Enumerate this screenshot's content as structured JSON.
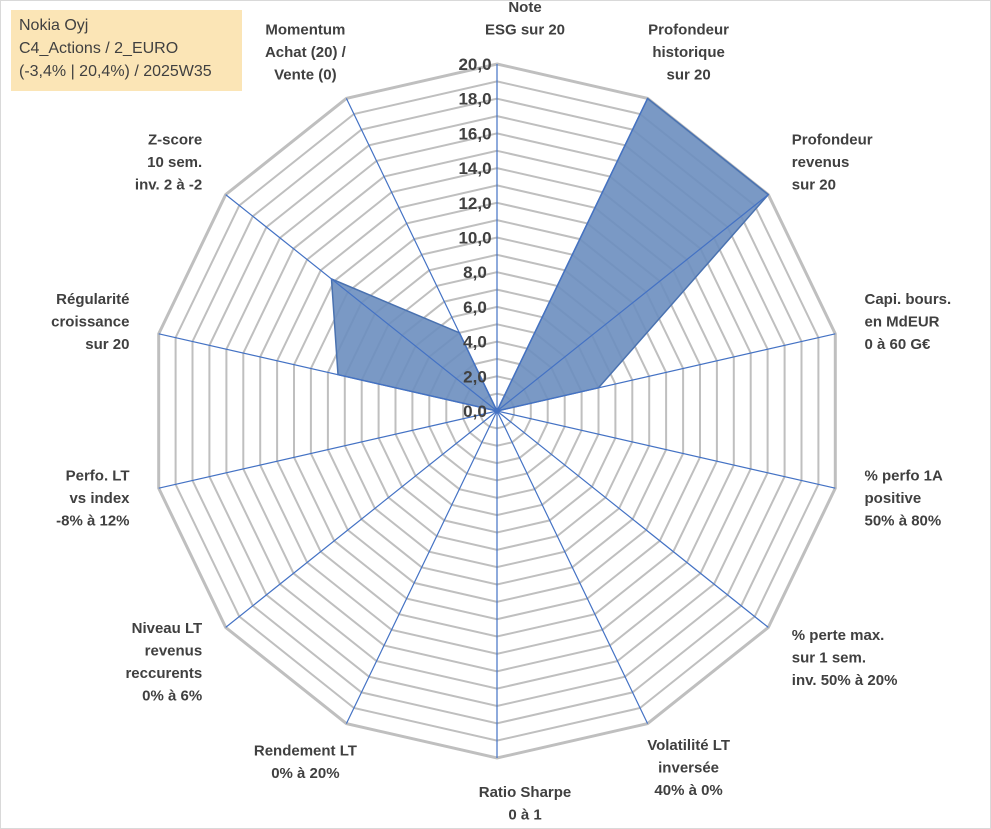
{
  "info_box": {
    "line1": "Nokia Oyj",
    "line2": "C4_Actions / 2_EURO",
    "line3": "(-3,4% | 20,4%) / 2025W35"
  },
  "chart_data": {
    "type": "radar",
    "title": "",
    "axis_min": 0,
    "axis_max": 20,
    "tick_step": 2,
    "tick_labels": [
      "0,0",
      "2,0",
      "4,0",
      "6,0",
      "8,0",
      "10,0",
      "12,0",
      "14,0",
      "16,0",
      "18,0",
      "20,0"
    ],
    "minor_gridline_step": 1,
    "categories": [
      [
        "Note",
        "ESG sur 20"
      ],
      [
        "Profondeur",
        "historique",
        "sur 20"
      ],
      [
        "Profondeur",
        "revenus",
        "sur 20"
      ],
      [
        "Capi. bours.",
        "en MdEUR",
        "0 à 60 G€"
      ],
      [
        "% perfo 1A",
        "positive",
        "50% à 80%"
      ],
      [
        "% perte max.",
        "sur 1 sem.",
        "inv. 50% à 20%"
      ],
      [
        "Volatilité LT",
        "inversée",
        "40% à 0%"
      ],
      [
        "Ratio Sharpe",
        "0 à 1"
      ],
      [
        "Rendement LT",
        "0% à 20%"
      ],
      [
        "Niveau LT",
        "revenus",
        "reccurents",
        "0% à 6%"
      ],
      [
        "Perfo. LT",
        "vs index",
        "-8% à 12%"
      ],
      [
        "Régularité",
        "croissance",
        "sur 20"
      ],
      [
        "Z-score",
        "10 sem.",
        "inv. 2 à -2"
      ],
      [
        "Momentum",
        "Achat (20) /",
        "Vente (0)"
      ]
    ],
    "series": [
      {
        "values": [
          0,
          20,
          20,
          6,
          0,
          0,
          0,
          0,
          0,
          0,
          0,
          9.4,
          12.2,
          5
        ],
        "fill": "#6c8ebf",
        "fill_opacity": 0.9,
        "stroke": "#4a72b0"
      }
    ],
    "colors": {
      "axis_spoke": "#4472c4",
      "grid": "#bfbfbf",
      "text": "#404040"
    }
  }
}
